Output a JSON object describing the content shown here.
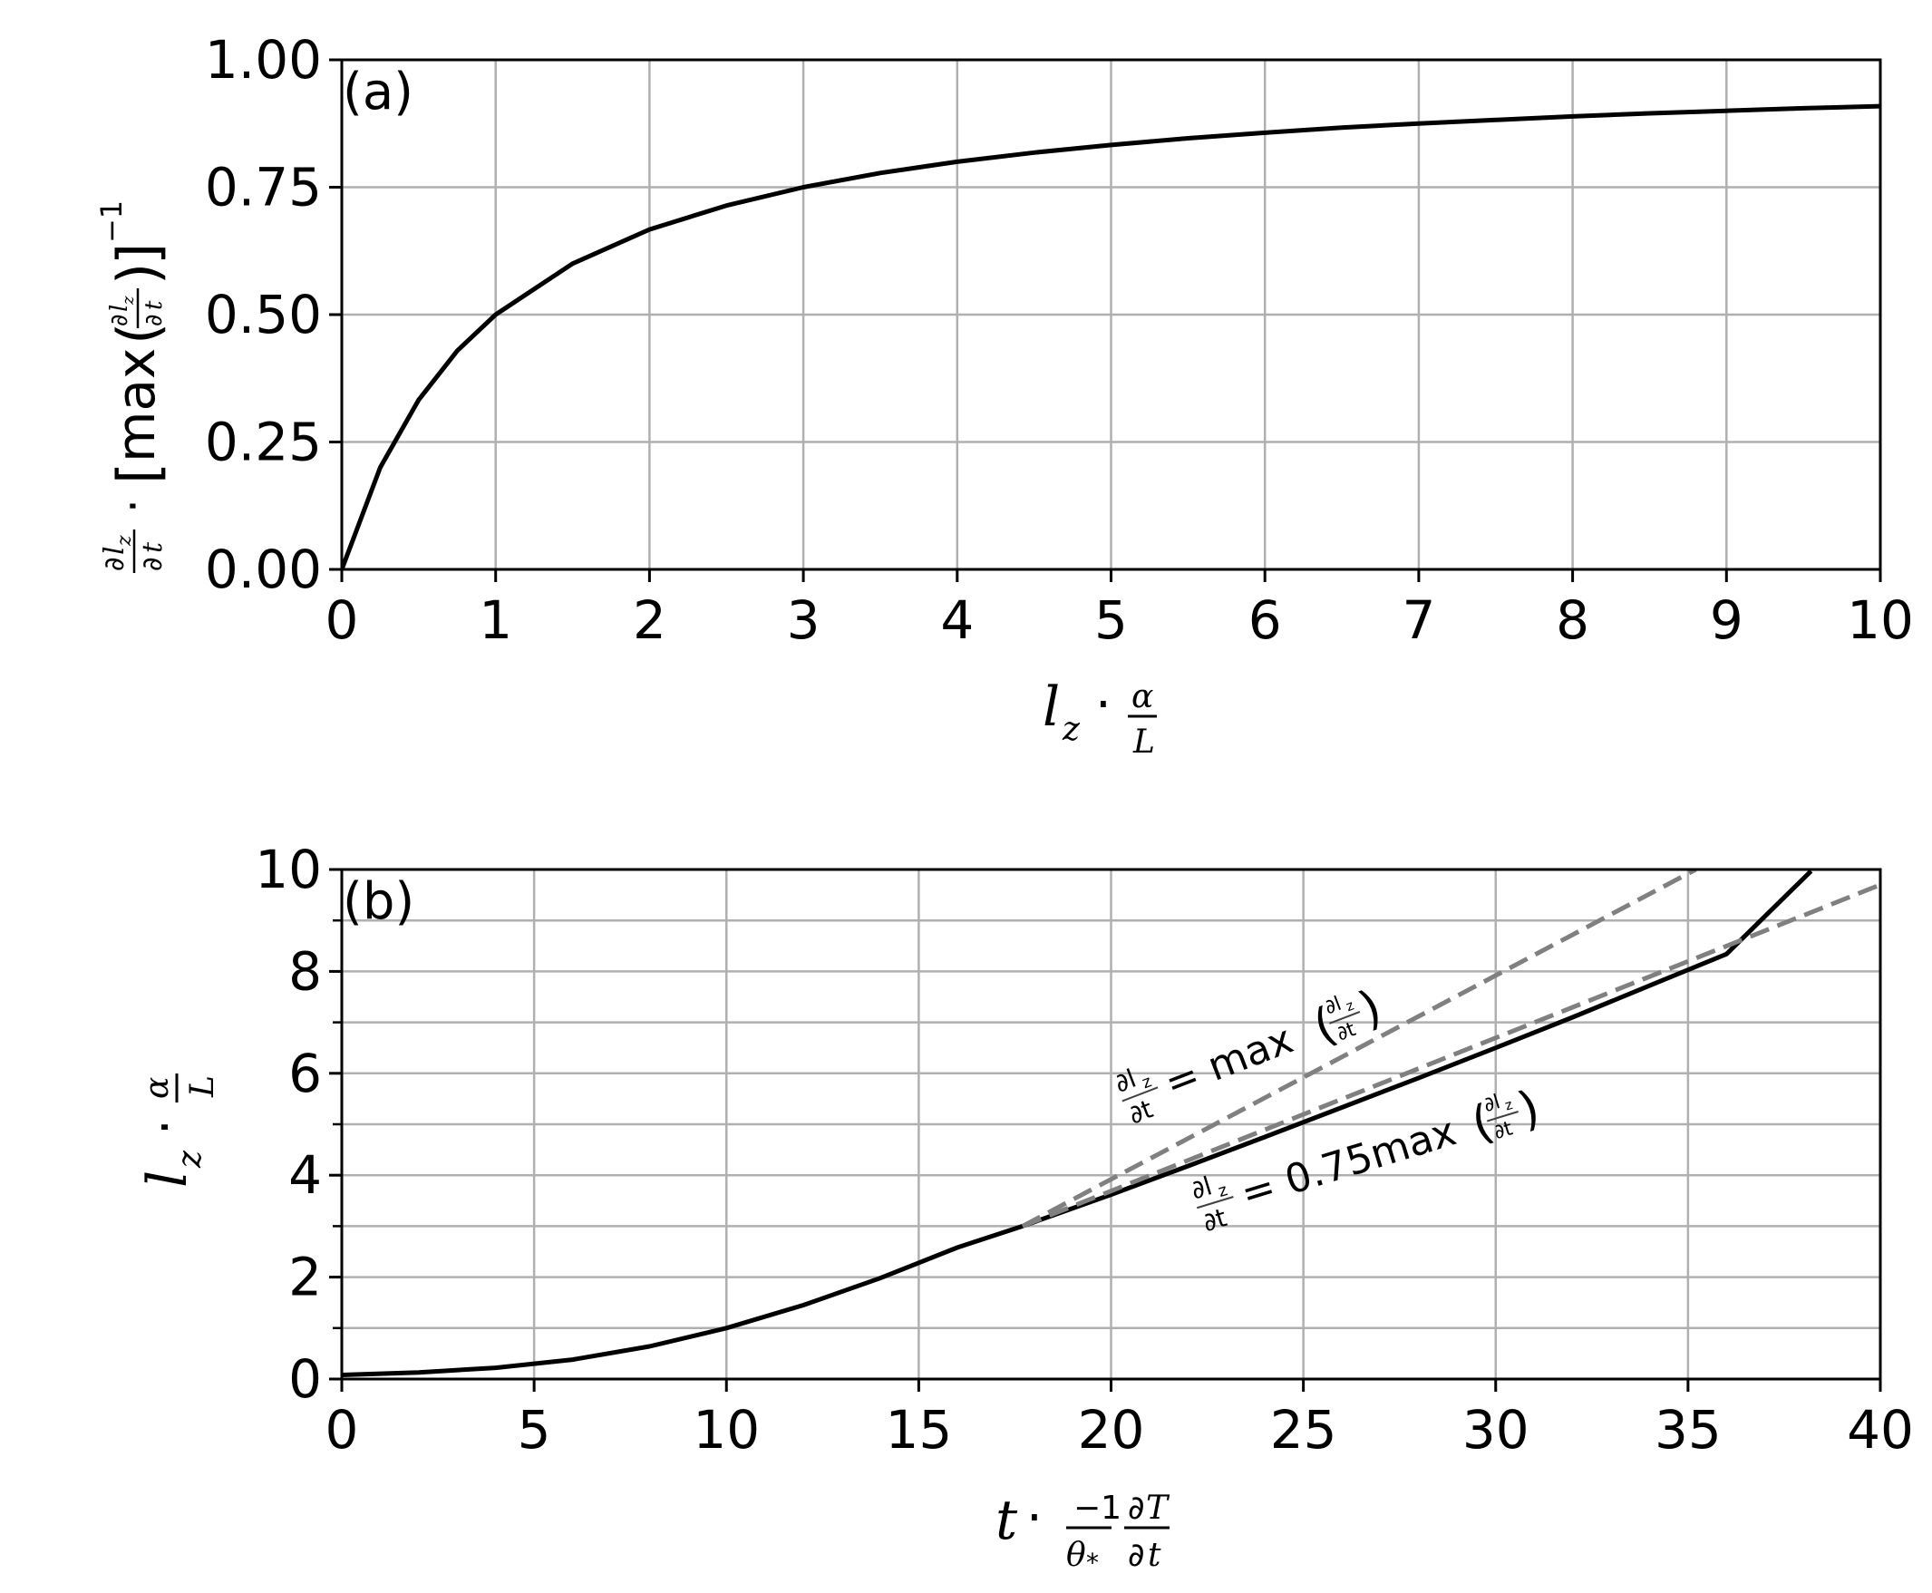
{
  "chart_data": [
    {
      "panel": "(a)",
      "type": "line",
      "xlim": [
        0,
        10
      ],
      "ylim": [
        0,
        1
      ],
      "xticks": [
        "0",
        "1",
        "2",
        "3",
        "4",
        "5",
        "6",
        "7",
        "8",
        "9",
        "10"
      ],
      "yticks": [
        "0.00",
        "0.25",
        "0.50",
        "0.75",
        "1.00"
      ],
      "grid": true,
      "series": [
        {
          "color": "#000000",
          "style": "solid",
          "x": [
            0,
            0.25,
            0.5,
            0.75,
            1,
            1.5,
            2,
            2.5,
            3,
            3.5,
            4,
            4.5,
            5,
            5.5,
            6,
            6.5,
            7,
            7.5,
            8,
            8.5,
            9,
            9.5,
            10
          ],
          "y": [
            0,
            0.2,
            0.333,
            0.429,
            0.5,
            0.6,
            0.667,
            0.714,
            0.75,
            0.778,
            0.8,
            0.818,
            0.833,
            0.846,
            0.857,
            0.867,
            0.875,
            0.882,
            0.889,
            0.895,
            0.9,
            0.905,
            0.909
          ]
        }
      ]
    },
    {
      "panel": "(b)",
      "type": "line",
      "xlim": [
        0,
        40
      ],
      "ylim": [
        0,
        10
      ],
      "xticks": [
        "0",
        "5",
        "10",
        "15",
        "20",
        "25",
        "30",
        "35",
        "40"
      ],
      "yticks": [
        "0",
        "2",
        "4",
        "6",
        "8",
        "10"
      ],
      "grid": true,
      "series": [
        {
          "color": "#000000",
          "style": "solid",
          "x": [
            0,
            2,
            4,
            6,
            8,
            10,
            12,
            14,
            16,
            17.7,
            20,
            22,
            24,
            26,
            28,
            30,
            32,
            34,
            36,
            38.2
          ],
          "y": [
            0.08,
            0.13,
            0.22,
            0.38,
            0.64,
            1.0,
            1.45,
            1.98,
            2.58,
            3.0,
            3.62,
            4.18,
            4.75,
            5.33,
            5.91,
            6.5,
            7.1,
            7.72,
            8.34,
            9.97
          ]
        },
        {
          "color": "#808080",
          "style": "dashed",
          "label_main": "= max",
          "x": [
            17.7,
            35.2
          ],
          "y": [
            3.0,
            10.0
          ]
        },
        {
          "color": "#808080",
          "style": "dashed",
          "label_main": "= 0.75max",
          "x": [
            17.7,
            40
          ],
          "y": [
            3.0,
            9.7
          ]
        }
      ]
    }
  ],
  "labels": {
    "a_xlabel_prefix": "l",
    "a_ylabel_tail": "max",
    "b_xlabel_prefix": "t",
    "b_ylabel_prefix": "l"
  },
  "colors": {
    "grid": "#b0b0b0",
    "axes": "#000000",
    "reference": "#808080"
  }
}
